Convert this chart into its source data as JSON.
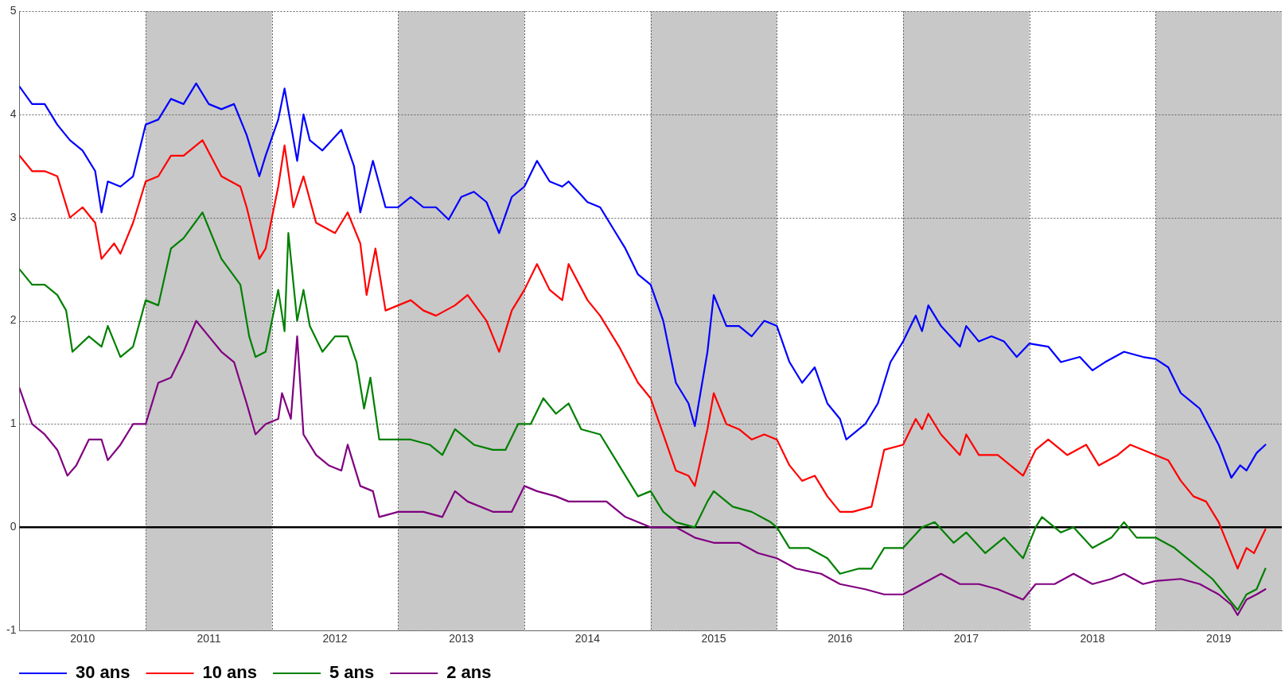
{
  "chart_data": {
    "type": "line",
    "xlim": [
      2010,
      2020
    ],
    "xticks": [
      {
        "value": 2010.5,
        "label": "2010"
      },
      {
        "value": 2011,
        "label": null
      },
      {
        "value": 2011.5,
        "label": "2011"
      },
      {
        "value": 2012,
        "label": null
      },
      {
        "value": 2012.5,
        "label": "2012"
      },
      {
        "value": 2013,
        "label": null
      },
      {
        "value": 2013.5,
        "label": "2013"
      },
      {
        "value": 2014,
        "label": null
      },
      {
        "value": 2014.5,
        "label": "2014"
      },
      {
        "value": 2015,
        "label": null
      },
      {
        "value": 2015.5,
        "label": "2015"
      },
      {
        "value": 2016,
        "label": null
      },
      {
        "value": 2016.5,
        "label": "2016"
      },
      {
        "value": 2017,
        "label": null
      },
      {
        "value": 2017.5,
        "label": "2017"
      },
      {
        "value": 2018,
        "label": null
      },
      {
        "value": 2018.5,
        "label": "2018"
      },
      {
        "value": 2019,
        "label": null
      },
      {
        "value": 2019.5,
        "label": "2019"
      }
    ],
    "ylim": [
      -1,
      5
    ],
    "yticks": [
      -1,
      0,
      1,
      2,
      3,
      4,
      5
    ],
    "grid": true,
    "legend": "bottom left",
    "marker": "none",
    "line_style": "solid",
    "ref_lines": [
      {
        "axis": "y",
        "value": 0,
        "color": "#000000"
      }
    ],
    "bands": [
      {
        "axis": "x",
        "from": 2011,
        "to": 2012,
        "color": "#c8c8c8"
      },
      {
        "axis": "x",
        "from": 2013,
        "to": 2014,
        "color": "#c8c8c8"
      },
      {
        "axis": "x",
        "from": 2015,
        "to": 2016,
        "color": "#c8c8c8"
      },
      {
        "axis": "x",
        "from": 2017,
        "to": 2018,
        "color": "#c8c8c8"
      },
      {
        "axis": "x",
        "from": 2019,
        "to": 2020,
        "color": "#c8c8c8"
      }
    ],
    "series": [
      {
        "name": "30 ans",
        "color": "#0000ff",
        "x": [
          2010.0,
          2010.1,
          2010.2,
          2010.3,
          2010.4,
          2010.5,
          2010.6,
          2010.65,
          2010.7,
          2010.8,
          2010.9,
          2011.0,
          2011.1,
          2011.2,
          2011.3,
          2011.4,
          2011.5,
          2011.6,
          2011.7,
          2011.8,
          2011.9,
          2011.95,
          2012.05,
          2012.1,
          2012.2,
          2012.25,
          2012.3,
          2012.4,
          2012.55,
          2012.65,
          2012.7,
          2012.8,
          2012.9,
          2013.0,
          2013.1,
          2013.2,
          2013.3,
          2013.4,
          2013.5,
          2013.6,
          2013.7,
          2013.8,
          2013.9,
          2014.0,
          2014.1,
          2014.2,
          2014.3,
          2014.35,
          2014.5,
          2014.6,
          2014.7,
          2014.8,
          2014.9,
          2015.0,
          2015.1,
          2015.2,
          2015.3,
          2015.35,
          2015.45,
          2015.5,
          2015.6,
          2015.7,
          2015.8,
          2015.9,
          2016.0,
          2016.1,
          2016.2,
          2016.3,
          2016.4,
          2016.5,
          2016.55,
          2016.7,
          2016.8,
          2016.9,
          2017.0,
          2017.1,
          2017.15,
          2017.2,
          2017.3,
          2017.45,
          2017.5,
          2017.6,
          2017.7,
          2017.8,
          2017.9,
          2018.0,
          2018.15,
          2018.25,
          2018.4,
          2018.5,
          2018.6,
          2018.75,
          2018.9,
          2019.0,
          2019.1,
          2019.2,
          2019.35,
          2019.5,
          2019.6,
          2019.67,
          2019.72,
          2019.8,
          2019.87
        ],
        "values": [
          4.27,
          4.1,
          4.1,
          3.9,
          3.75,
          3.65,
          3.45,
          3.05,
          3.35,
          3.3,
          3.4,
          3.9,
          3.95,
          4.15,
          4.1,
          4.3,
          4.1,
          4.05,
          4.1,
          3.8,
          3.4,
          3.6,
          3.95,
          4.25,
          3.55,
          4.0,
          3.75,
          3.65,
          3.85,
          3.5,
          3.05,
          3.55,
          3.1,
          3.1,
          3.2,
          3.1,
          3.1,
          2.98,
          3.2,
          3.25,
          3.15,
          2.85,
          3.2,
          3.3,
          3.55,
          3.35,
          3.3,
          3.35,
          3.15,
          3.1,
          2.9,
          2.7,
          2.45,
          2.35,
          2.0,
          1.4,
          1.2,
          0.98,
          1.7,
          2.25,
          1.95,
          1.95,
          1.85,
          2.0,
          1.95,
          1.6,
          1.4,
          1.55,
          1.2,
          1.05,
          0.85,
          1.0,
          1.2,
          1.6,
          1.8,
          2.05,
          1.9,
          2.15,
          1.95,
          1.75,
          1.95,
          1.8,
          1.85,
          1.8,
          1.65,
          1.78,
          1.75,
          1.6,
          1.65,
          1.52,
          1.6,
          1.7,
          1.65,
          1.63,
          1.55,
          1.3,
          1.15,
          0.8,
          0.48,
          0.6,
          0.55,
          0.72,
          0.8
        ]
      },
      {
        "name": "10 ans",
        "color": "#ff0000",
        "x": [
          2010.0,
          2010.1,
          2010.2,
          2010.3,
          2010.4,
          2010.5,
          2010.6,
          2010.65,
          2010.75,
          2010.8,
          2010.9,
          2011.0,
          2011.1,
          2011.2,
          2011.3,
          2011.45,
          2011.6,
          2011.75,
          2011.8,
          2011.9,
          2011.95,
          2012.05,
          2012.1,
          2012.17,
          2012.25,
          2012.35,
          2012.5,
          2012.6,
          2012.7,
          2012.75,
          2012.82,
          2012.9,
          2013.0,
          2013.1,
          2013.2,
          2013.3,
          2013.45,
          2013.55,
          2013.7,
          2013.8,
          2013.9,
          2014.0,
          2014.1,
          2014.2,
          2014.3,
          2014.35,
          2014.5,
          2014.6,
          2014.75,
          2014.9,
          2015.0,
          2015.1,
          2015.2,
          2015.3,
          2015.35,
          2015.45,
          2015.5,
          2015.6,
          2015.7,
          2015.8,
          2015.9,
          2016.0,
          2016.1,
          2016.2,
          2016.3,
          2016.4,
          2016.5,
          2016.6,
          2016.75,
          2016.85,
          2017.0,
          2017.1,
          2017.15,
          2017.2,
          2017.3,
          2017.45,
          2017.5,
          2017.6,
          2017.75,
          2017.95,
          2018.05,
          2018.15,
          2018.3,
          2018.45,
          2018.55,
          2018.7,
          2018.8,
          2019.0,
          2019.1,
          2019.2,
          2019.3,
          2019.4,
          2019.5,
          2019.55,
          2019.65,
          2019.72,
          2019.78,
          2019.87
        ],
        "values": [
          3.6,
          3.45,
          3.45,
          3.4,
          3.0,
          3.1,
          2.95,
          2.6,
          2.75,
          2.65,
          2.95,
          3.35,
          3.4,
          3.6,
          3.6,
          3.75,
          3.4,
          3.3,
          3.1,
          2.6,
          2.7,
          3.3,
          3.7,
          3.1,
          3.4,
          2.95,
          2.85,
          3.05,
          2.75,
          2.25,
          2.7,
          2.1,
          2.15,
          2.2,
          2.1,
          2.05,
          2.15,
          2.25,
          2.0,
          1.7,
          2.1,
          2.3,
          2.55,
          2.3,
          2.2,
          2.55,
          2.2,
          2.05,
          1.75,
          1.4,
          1.25,
          0.9,
          0.55,
          0.5,
          0.4,
          0.95,
          1.3,
          1.0,
          0.95,
          0.85,
          0.9,
          0.85,
          0.6,
          0.45,
          0.5,
          0.3,
          0.15,
          0.15,
          0.2,
          0.75,
          0.8,
          1.05,
          0.95,
          1.1,
          0.9,
          0.7,
          0.9,
          0.7,
          0.7,
          0.5,
          0.75,
          0.85,
          0.7,
          0.8,
          0.6,
          0.7,
          0.8,
          0.7,
          0.65,
          0.45,
          0.3,
          0.25,
          0.05,
          -0.1,
          -0.4,
          -0.2,
          -0.25,
          -0.02
        ]
      },
      {
        "name": "5 ans",
        "color": "#008000",
        "x": [
          2010.0,
          2010.1,
          2010.2,
          2010.3,
          2010.37,
          2010.42,
          2010.55,
          2010.65,
          2010.7,
          2010.8,
          2010.9,
          2011.0,
          2011.1,
          2011.2,
          2011.3,
          2011.45,
          2011.6,
          2011.75,
          2011.82,
          2011.87,
          2011.95,
          2012.05,
          2012.1,
          2012.13,
          2012.2,
          2012.25,
          2012.3,
          2012.4,
          2012.5,
          2012.6,
          2012.67,
          2012.73,
          2012.78,
          2012.85,
          2012.95,
          2013.1,
          2013.25,
          2013.35,
          2013.45,
          2013.6,
          2013.75,
          2013.85,
          2013.95,
          2014.05,
          2014.15,
          2014.25,
          2014.35,
          2014.45,
          2014.6,
          2014.75,
          2014.9,
          2015.0,
          2015.1,
          2015.2,
          2015.35,
          2015.45,
          2015.5,
          2015.65,
          2015.8,
          2015.95,
          2016.0,
          2016.1,
          2016.25,
          2016.4,
          2016.5,
          2016.65,
          2016.75,
          2016.85,
          2017.0,
          2017.15,
          2017.25,
          2017.4,
          2017.5,
          2017.65,
          2017.8,
          2017.95,
          2018.05,
          2018.1,
          2018.25,
          2018.35,
          2018.5,
          2018.65,
          2018.75,
          2018.85,
          2019.0,
          2019.15,
          2019.3,
          2019.45,
          2019.55,
          2019.65,
          2019.72,
          2019.8,
          2019.87
        ],
        "values": [
          2.5,
          2.35,
          2.35,
          2.25,
          2.1,
          1.7,
          1.85,
          1.75,
          1.95,
          1.65,
          1.75,
          2.2,
          2.15,
          2.7,
          2.8,
          3.05,
          2.6,
          2.35,
          1.85,
          1.65,
          1.7,
          2.3,
          1.9,
          2.85,
          2.0,
          2.3,
          1.95,
          1.7,
          1.85,
          1.85,
          1.6,
          1.15,
          1.45,
          0.85,
          0.85,
          0.85,
          0.8,
          0.7,
          0.95,
          0.8,
          0.75,
          0.75,
          1.0,
          1.0,
          1.25,
          1.1,
          1.2,
          0.95,
          0.9,
          0.6,
          0.3,
          0.35,
          0.15,
          0.05,
          0.0,
          0.25,
          0.35,
          0.2,
          0.15,
          0.05,
          0.0,
          -0.2,
          -0.2,
          -0.3,
          -0.45,
          -0.4,
          -0.4,
          -0.2,
          -0.2,
          0.0,
          0.05,
          -0.15,
          -0.05,
          -0.25,
          -0.1,
          -0.3,
          0.0,
          0.1,
          -0.05,
          0.0,
          -0.2,
          -0.1,
          0.05,
          -0.1,
          -0.1,
          -0.2,
          -0.35,
          -0.5,
          -0.65,
          -0.8,
          -0.65,
          -0.6,
          -0.4
        ]
      },
      {
        "name": "2 ans",
        "color": "#800080",
        "x": [
          2010.0,
          2010.1,
          2010.2,
          2010.3,
          2010.38,
          2010.45,
          2010.55,
          2010.65,
          2010.7,
          2010.8,
          2010.9,
          2011.0,
          2011.1,
          2011.2,
          2011.3,
          2011.4,
          2011.5,
          2011.6,
          2011.7,
          2011.8,
          2011.87,
          2011.95,
          2012.05,
          2012.08,
          2012.15,
          2012.2,
          2012.25,
          2012.35,
          2012.45,
          2012.55,
          2012.6,
          2012.7,
          2012.8,
          2012.85,
          2013.0,
          2013.2,
          2013.35,
          2013.45,
          2013.55,
          2013.75,
          2013.9,
          2014.0,
          2014.1,
          2014.25,
          2014.35,
          2014.5,
          2014.65,
          2014.8,
          2015.0,
          2015.2,
          2015.35,
          2015.5,
          2015.7,
          2015.85,
          2016.0,
          2016.15,
          2016.35,
          2016.5,
          2016.7,
          2016.85,
          2017.0,
          2017.15,
          2017.3,
          2017.45,
          2017.6,
          2017.75,
          2017.95,
          2018.05,
          2018.2,
          2018.35,
          2018.5,
          2018.65,
          2018.75,
          2018.9,
          2019.0,
          2019.2,
          2019.35,
          2019.5,
          2019.6,
          2019.65,
          2019.72,
          2019.8,
          2019.87
        ],
        "values": [
          1.35,
          1.0,
          0.9,
          0.75,
          0.5,
          0.6,
          0.85,
          0.85,
          0.65,
          0.8,
          1.0,
          1.0,
          1.4,
          1.45,
          1.7,
          2.0,
          1.85,
          1.7,
          1.6,
          1.2,
          0.9,
          1.0,
          1.05,
          1.3,
          1.05,
          1.85,
          0.9,
          0.7,
          0.6,
          0.55,
          0.8,
          0.4,
          0.35,
          0.1,
          0.15,
          0.15,
          0.1,
          0.35,
          0.25,
          0.15,
          0.15,
          0.4,
          0.35,
          0.3,
          0.25,
          0.25,
          0.25,
          0.1,
          0.0,
          0.0,
          -0.1,
          -0.15,
          -0.15,
          -0.25,
          -0.3,
          -0.4,
          -0.45,
          -0.55,
          -0.6,
          -0.65,
          -0.65,
          -0.55,
          -0.45,
          -0.55,
          -0.55,
          -0.6,
          -0.7,
          -0.55,
          -0.55,
          -0.45,
          -0.55,
          -0.5,
          -0.45,
          -0.55,
          -0.52,
          -0.5,
          -0.55,
          -0.65,
          -0.75,
          -0.85,
          -0.7,
          -0.65,
          -0.6
        ]
      }
    ]
  }
}
